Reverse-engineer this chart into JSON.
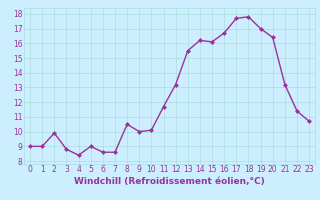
{
  "x": [
    0,
    1,
    2,
    3,
    4,
    5,
    6,
    7,
    8,
    9,
    10,
    11,
    12,
    13,
    14,
    15,
    16,
    17,
    18,
    19,
    20,
    21,
    22,
    23
  ],
  "y": [
    9.0,
    9.0,
    9.9,
    8.8,
    8.4,
    9.0,
    8.6,
    8.6,
    10.5,
    10.0,
    10.1,
    11.7,
    13.2,
    15.5,
    16.2,
    16.1,
    16.7,
    17.7,
    17.8,
    17.0,
    16.4,
    13.2,
    11.4,
    10.7
  ],
  "line_color": "#993399",
  "marker": "D",
  "marker_size": 2.0,
  "line_width": 1.0,
  "bg_color": "#cceeff",
  "grid_color": "#aadddd",
  "xlabel": "Windchill (Refroidissement éolien,°C)",
  "xlabel_fontsize": 6.5,
  "xlabel_color": "#993399",
  "ylabel_ticks": [
    8,
    9,
    10,
    11,
    12,
    13,
    14,
    15,
    16,
    17,
    18
  ],
  "xtick_labels": [
    "0",
    "1",
    "2",
    "3",
    "4",
    "5",
    "6",
    "7",
    "8",
    "9",
    "10",
    "11",
    "12",
    "13",
    "14",
    "15",
    "16",
    "17",
    "18",
    "19",
    "20",
    "21",
    "22",
    "23"
  ],
  "ylim": [
    7.8,
    18.4
  ],
  "xlim": [
    -0.5,
    23.5
  ],
  "tick_fontsize": 5.5,
  "tick_color": "#993399"
}
